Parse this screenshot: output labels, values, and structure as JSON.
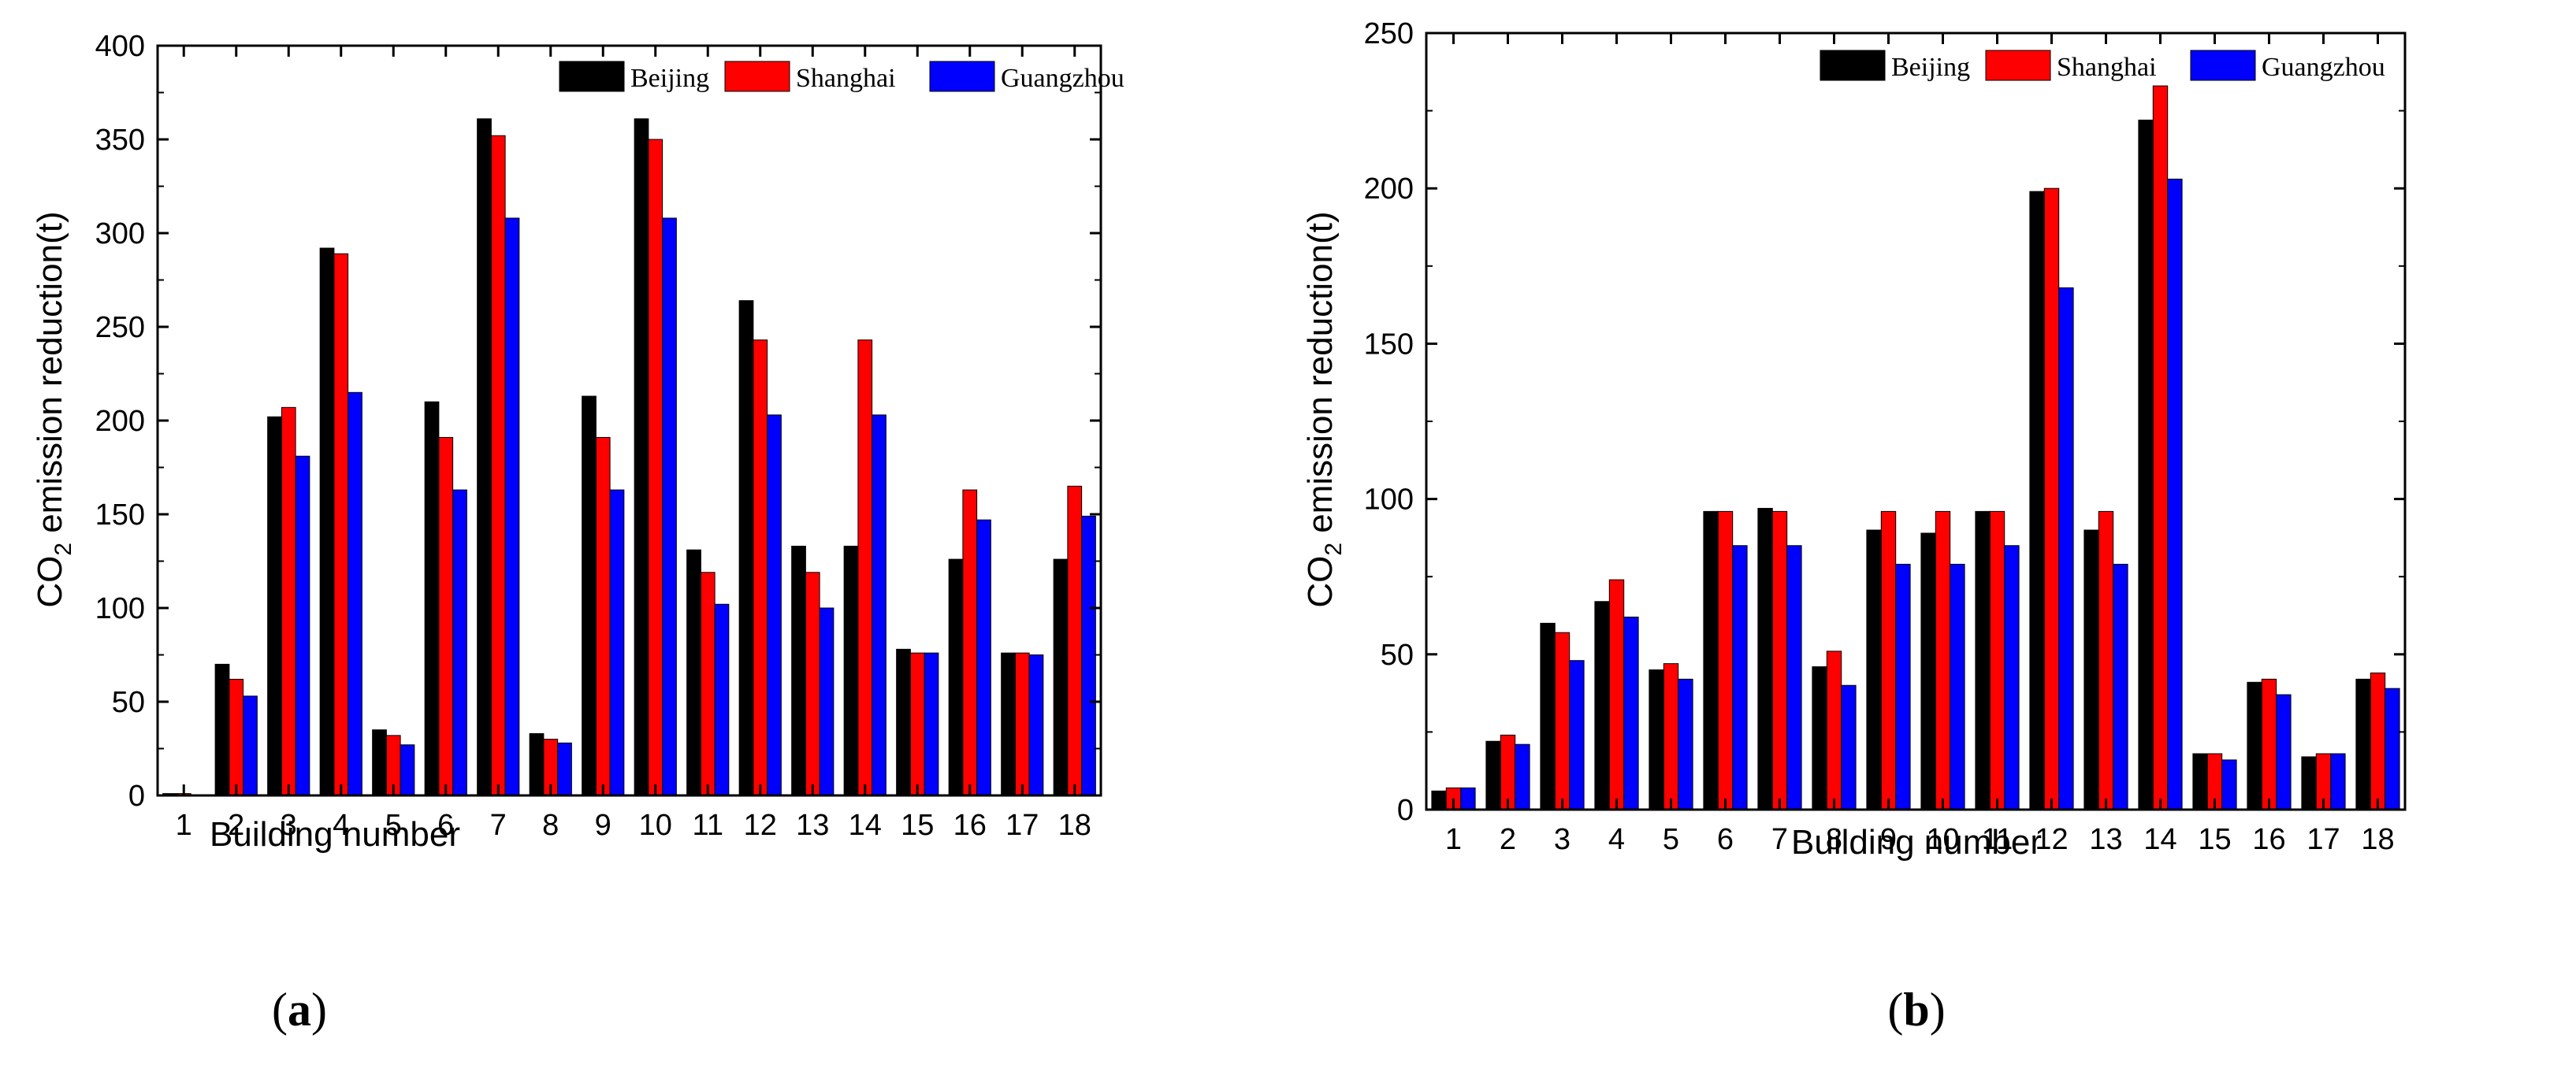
{
  "colors": {
    "Beijing": "#000000",
    "Shanghai": "#ff0000",
    "Guangzhou": "#0000ff"
  },
  "chart_data": [
    {
      "type": "bar",
      "panel_label": {
        "open": "(",
        "letter": "a",
        "close": ")"
      },
      "title": "",
      "xlabel": "Building number",
      "ylabel": {
        "prefix": "CO",
        "sub": "2",
        "suffix": " emission reduction(t)"
      },
      "ylim": [
        0,
        400
      ],
      "yticks": [
        "0",
        "50",
        "100",
        "150",
        "200",
        "250",
        "300",
        "350",
        "400"
      ],
      "categories": [
        "1",
        "2",
        "3",
        "4",
        "5",
        "6",
        "7",
        "8",
        "9",
        "10",
        "11",
        "12",
        "13",
        "14",
        "15",
        "16",
        "17",
        "18"
      ],
      "legend_position": "top-right",
      "series": [
        {
          "name": "Beijing",
          "values": [
            1,
            70,
            202,
            292,
            35,
            210,
            361,
            33,
            213,
            361,
            131,
            264,
            133,
            133,
            78,
            126,
            76,
            126
          ]
        },
        {
          "name": "Shanghai",
          "values": [
            1,
            62,
            207,
            289,
            32,
            191,
            352,
            30,
            191,
            350,
            119,
            243,
            119,
            243,
            76,
            163,
            76,
            165
          ]
        },
        {
          "name": "Guangzhou",
          "values": [
            0,
            53,
            181,
            215,
            27,
            163,
            308,
            28,
            163,
            308,
            102,
            203,
            100,
            203,
            76,
            147,
            75,
            149
          ]
        }
      ]
    },
    {
      "type": "bar",
      "panel_label": {
        "open": "(",
        "letter": "b",
        "close": ")"
      },
      "title": "",
      "xlabel": "Building number",
      "ylabel": {
        "prefix": "CO",
        "sub": "2",
        "suffix": " emission reduction(t)"
      },
      "ylim": [
        0,
        250
      ],
      "yticks": [
        "0",
        "50",
        "100",
        "150",
        "200",
        "250"
      ],
      "categories": [
        "1",
        "2",
        "3",
        "4",
        "5",
        "6",
        "7",
        "8",
        "9",
        "10",
        "11",
        "12",
        "13",
        "14",
        "15",
        "16",
        "17",
        "18"
      ],
      "legend_position": "top-right",
      "series": [
        {
          "name": "Beijing",
          "values": [
            6,
            22,
            60,
            67,
            45,
            96,
            97,
            46,
            90,
            89,
            96,
            199,
            90,
            222,
            18,
            41,
            17,
            42
          ]
        },
        {
          "name": "Shanghai",
          "values": [
            7,
            24,
            57,
            74,
            47,
            96,
            96,
            51,
            96,
            96,
            96,
            200,
            96,
            233,
            18,
            42,
            18,
            44
          ]
        },
        {
          "name": "Guangzhou",
          "values": [
            7,
            21,
            48,
            62,
            42,
            85,
            85,
            40,
            79,
            79,
            85,
            168,
            79,
            203,
            16,
            37,
            18,
            39
          ]
        }
      ]
    }
  ]
}
